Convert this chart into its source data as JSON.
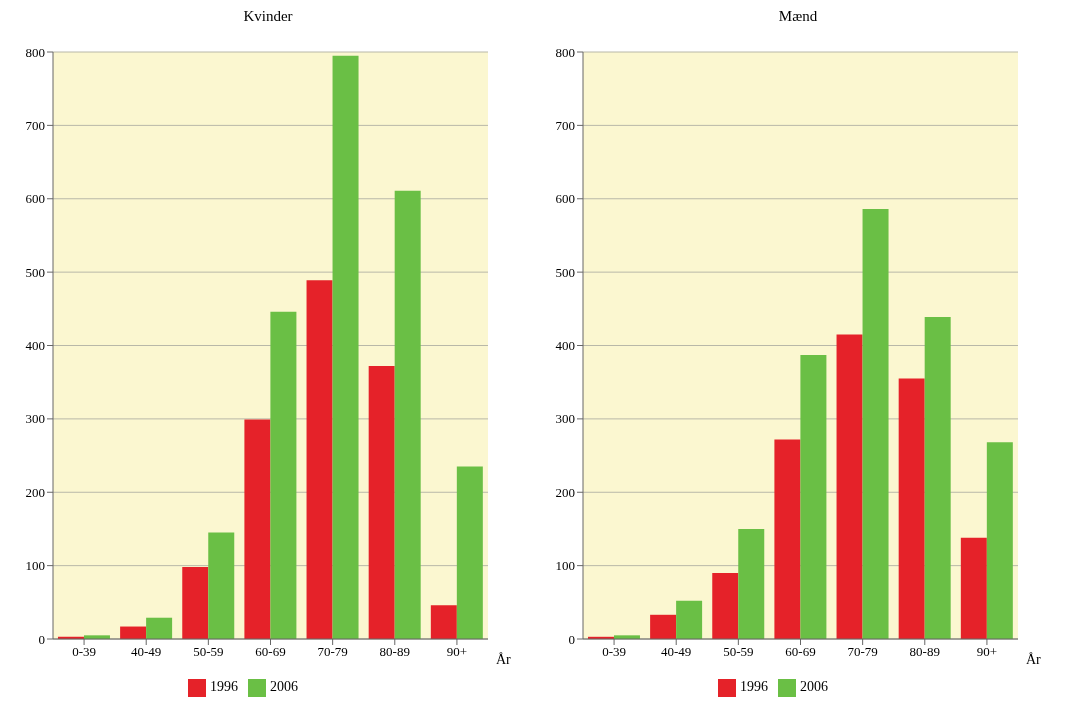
{
  "chart_data": [
    {
      "type": "bar",
      "title": "Kvinder",
      "xlabel": "År",
      "categories": [
        "0-39",
        "40-49",
        "50-59",
        "60-69",
        "70-79",
        "80-89",
        "90+"
      ],
      "series": [
        {
          "name": "1996",
          "color": "#e52229",
          "values": [
            3,
            17,
            98,
            299,
            489,
            372,
            46
          ]
        },
        {
          "name": "2006",
          "color": "#6abf45",
          "values": [
            5,
            29,
            145,
            446,
            795,
            611,
            235
          ]
        }
      ],
      "ylim": [
        0,
        800
      ],
      "yticks": [
        0,
        100,
        200,
        300,
        400,
        500,
        600,
        700,
        800
      ],
      "grid": "y",
      "legend": "bottom"
    },
    {
      "type": "bar",
      "title": "Mænd",
      "xlabel": "År",
      "categories": [
        "0-39",
        "40-49",
        "50-59",
        "60-69",
        "70-79",
        "80-89",
        "90+"
      ],
      "series": [
        {
          "name": "1996",
          "color": "#e52229",
          "values": [
            3,
            33,
            90,
            272,
            415,
            355,
            138
          ]
        },
        {
          "name": "2006",
          "color": "#6abf45",
          "values": [
            5,
            52,
            150,
            387,
            586,
            439,
            268
          ]
        }
      ],
      "ylim": [
        0,
        800
      ],
      "yticks": [
        0,
        100,
        200,
        300,
        400,
        500,
        600,
        700,
        800
      ],
      "grid": "y",
      "legend": "bottom"
    }
  ]
}
